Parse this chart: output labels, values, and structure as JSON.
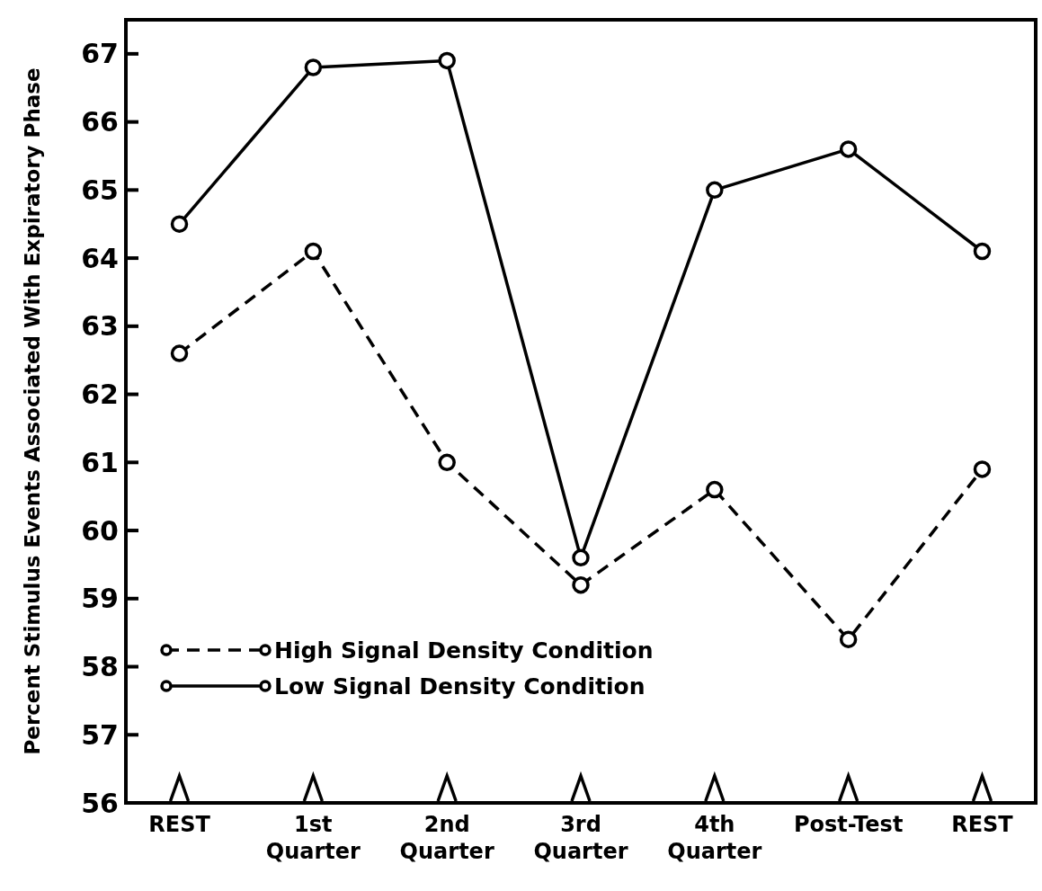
{
  "chart_data": {
    "type": "line",
    "ylabel": "Percent Stimulus Events Associated With Expiratory Phase",
    "categories": [
      "REST",
      "1st\nQuarter",
      "2nd\nQuarter",
      "3rd\nQuarter",
      "4th\nQuarter",
      "Post-Test",
      "REST"
    ],
    "series": [
      {
        "name": "High Signal Density Condition",
        "color": "#000000",
        "line_style": "dashed",
        "values": [
          62.6,
          64.1,
          61.0,
          59.2,
          60.6,
          58.4,
          60.9
        ]
      },
      {
        "name": "Low Signal Density Condition",
        "color": "#000000",
        "line_style": "solid",
        "values": [
          64.5,
          66.8,
          66.9,
          59.6,
          65.0,
          65.6,
          64.1
        ]
      }
    ],
    "ylim": [
      56,
      67.5
    ],
    "yticks": [
      56,
      57,
      58,
      59,
      60,
      61,
      62,
      63,
      64,
      65,
      66,
      67
    ],
    "marker": "circle",
    "legend": "bottom left",
    "grid": false
  }
}
